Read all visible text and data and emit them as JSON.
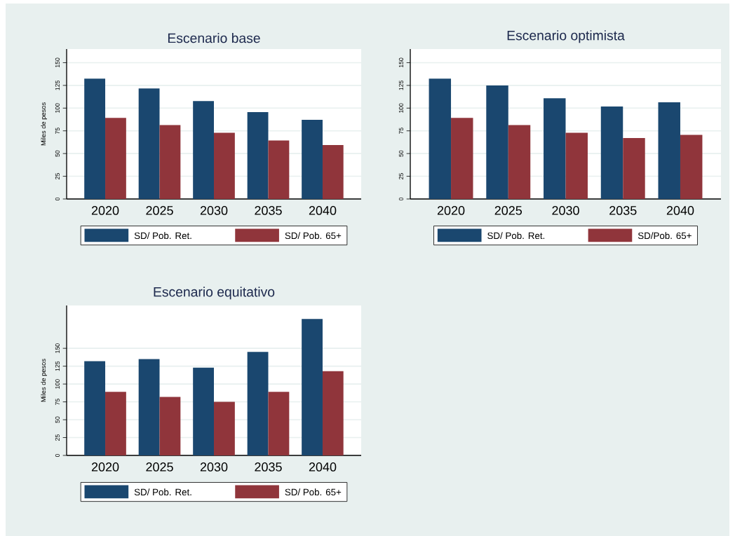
{
  "chart_data": [
    {
      "type": "bar",
      "title": "Escenario base",
      "ylabel": "Miles de pesos",
      "categories": [
        "2020",
        "2025",
        "2030",
        "2035",
        "2040"
      ],
      "series": [
        {
          "name": "SD/ Pob. Ret.",
          "color": "#1a476f",
          "values": [
            132.5,
            121.6,
            107.7,
            95.6,
            87.1
          ]
        },
        {
          "name": "SD/ Pob. 65+",
          "color": "#90353b",
          "values": [
            89.2,
            81.4,
            72.9,
            64.4,
            59.3
          ]
        }
      ],
      "ylim": [
        0,
        165
      ],
      "yticks": [
        0,
        25,
        50,
        75,
        100,
        125,
        150
      ],
      "grid": "y",
      "legend": "bottom"
    },
    {
      "type": "bar",
      "title": "Escenario optimista",
      "categories": [
        "2020",
        "2025",
        "2030",
        "2035",
        "2040"
      ],
      "series": [
        {
          "name": "SD/ Pob. Ret.",
          "color": "#1a476f",
          "values": [
            132.5,
            125.0,
            110.8,
            101.8,
            106.4
          ]
        },
        {
          "name": "SD/Pob. 65+",
          "color": "#90353b",
          "values": [
            89.2,
            81.4,
            72.9,
            67.0,
            70.6
          ]
        }
      ],
      "ylim": [
        0,
        165
      ],
      "yticks": [
        0,
        25,
        50,
        75,
        100,
        125,
        150
      ],
      "grid": "y",
      "legend": "bottom"
    },
    {
      "type": "bar",
      "title": "Escenario equitativo",
      "ylabel": "Miles de pesos",
      "categories": [
        "2020",
        "2025",
        "2030",
        "2035",
        "2040"
      ],
      "series": [
        {
          "name": "SD/ Pob. Ret.",
          "color": "#1a476f",
          "values": [
            132,
            135,
            123,
            145,
            191
          ]
        },
        {
          "name": "SD/ Pob. 65+",
          "color": "#90353b",
          "values": [
            89,
            82,
            75,
            89,
            118
          ]
        }
      ],
      "ylim": [
        0,
        210
      ],
      "yticks": [
        0,
        25,
        50,
        75,
        100,
        125,
        150
      ],
      "grid": "y",
      "legend": "bottom"
    }
  ]
}
